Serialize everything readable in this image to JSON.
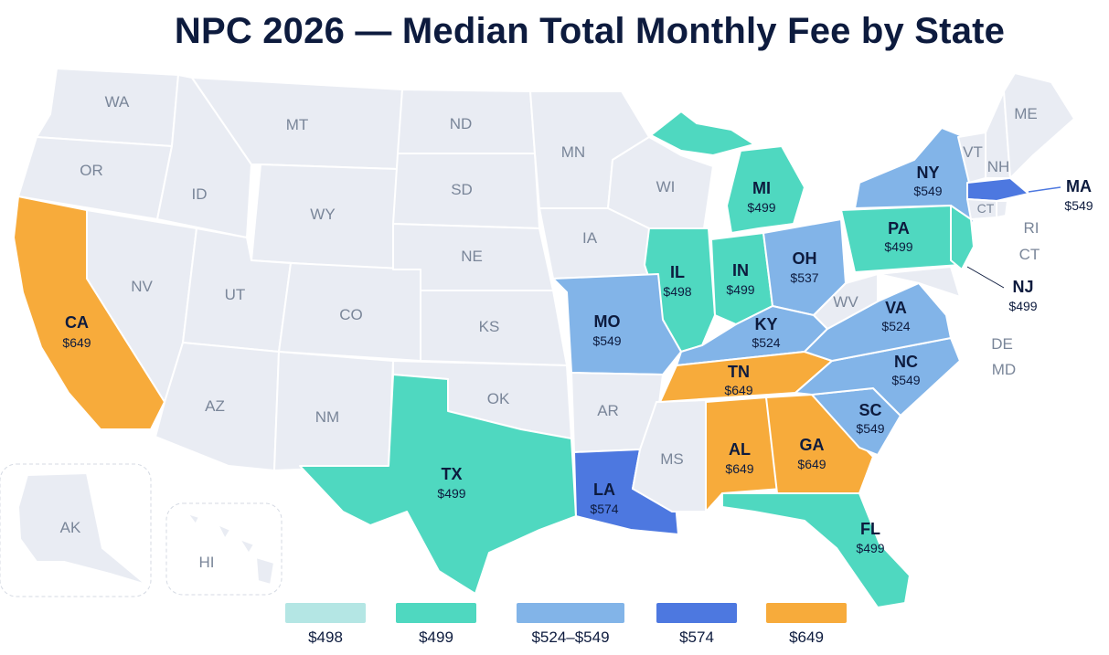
{
  "title": "NPC 2026 — Median Total Monthly Fee by State",
  "colors": {
    "no_data": "#e9ecf3",
    "c498": "#b4e6e4",
    "c499": "#4fd8c0",
    "c524_549": "#82b4e8",
    "c574": "#4d78e0",
    "c649": "#f7ab3b"
  },
  "states": {
    "WA": {
      "abbr": "WA"
    },
    "OR": {
      "abbr": "OR"
    },
    "ID": {
      "abbr": "ID"
    },
    "MT": {
      "abbr": "MT"
    },
    "WY": {
      "abbr": "WY"
    },
    "NV": {
      "abbr": "NV"
    },
    "UT": {
      "abbr": "UT"
    },
    "AZ": {
      "abbr": "AZ"
    },
    "CO": {
      "abbr": "CO"
    },
    "NM": {
      "abbr": "NM"
    },
    "ND": {
      "abbr": "ND"
    },
    "SD": {
      "abbr": "SD"
    },
    "NE": {
      "abbr": "NE"
    },
    "KS": {
      "abbr": "KS"
    },
    "OK": {
      "abbr": "OK"
    },
    "MN": {
      "abbr": "MN"
    },
    "IA": {
      "abbr": "IA"
    },
    "WI": {
      "abbr": "WI"
    },
    "AR": {
      "abbr": "AR"
    },
    "MS": {
      "abbr": "MS"
    },
    "WV": {
      "abbr": "WV"
    },
    "VT": {
      "abbr": "VT"
    },
    "NH": {
      "abbr": "NH"
    },
    "ME": {
      "abbr": "ME"
    },
    "RI": {
      "abbr": "RI"
    },
    "CT": {
      "abbr": "CT"
    },
    "DE": {
      "abbr": "DE"
    },
    "MD": {
      "abbr": "MD"
    },
    "AK": {
      "abbr": "AK"
    },
    "HI": {
      "abbr": "HI"
    },
    "CA": {
      "abbr": "CA",
      "fee": "$649"
    },
    "TX": {
      "abbr": "TX",
      "fee": "$499"
    },
    "LA": {
      "abbr": "LA",
      "fee": "$574"
    },
    "MO": {
      "abbr": "MO",
      "fee": "$549"
    },
    "IL": {
      "abbr": "IL",
      "fee": "$498"
    },
    "IN": {
      "abbr": "IN",
      "fee": "$499"
    },
    "MI": {
      "abbr": "MI",
      "fee": "$499"
    },
    "OH": {
      "abbr": "OH",
      "fee": "$537"
    },
    "KY": {
      "abbr": "KY",
      "fee": "$524"
    },
    "TN": {
      "abbr": "TN",
      "fee": "$649"
    },
    "AL": {
      "abbr": "AL",
      "fee": "$649"
    },
    "GA": {
      "abbr": "GA",
      "fee": "$649"
    },
    "FL": {
      "abbr": "FL",
      "fee": "$499"
    },
    "SC": {
      "abbr": "SC",
      "fee": "$549"
    },
    "NC": {
      "abbr": "NC",
      "fee": "$549"
    },
    "VA": {
      "abbr": "VA",
      "fee": "$524"
    },
    "PA": {
      "abbr": "PA",
      "fee": "$499"
    },
    "NY": {
      "abbr": "NY",
      "fee": "$549"
    },
    "NJ": {
      "abbr": "NJ",
      "fee": "$499"
    },
    "MA": {
      "abbr": "MA",
      "fee": "$549"
    }
  },
  "legend": [
    {
      "label": "$498",
      "color": "#b4e6e4"
    },
    {
      "label": "$499",
      "color": "#4fd8c0"
    },
    {
      "label": "$524–$549",
      "color": "#82b4e8"
    },
    {
      "label": "$574",
      "color": "#4d78e0"
    },
    {
      "label": "$649",
      "color": "#f7ab3b"
    }
  ]
}
